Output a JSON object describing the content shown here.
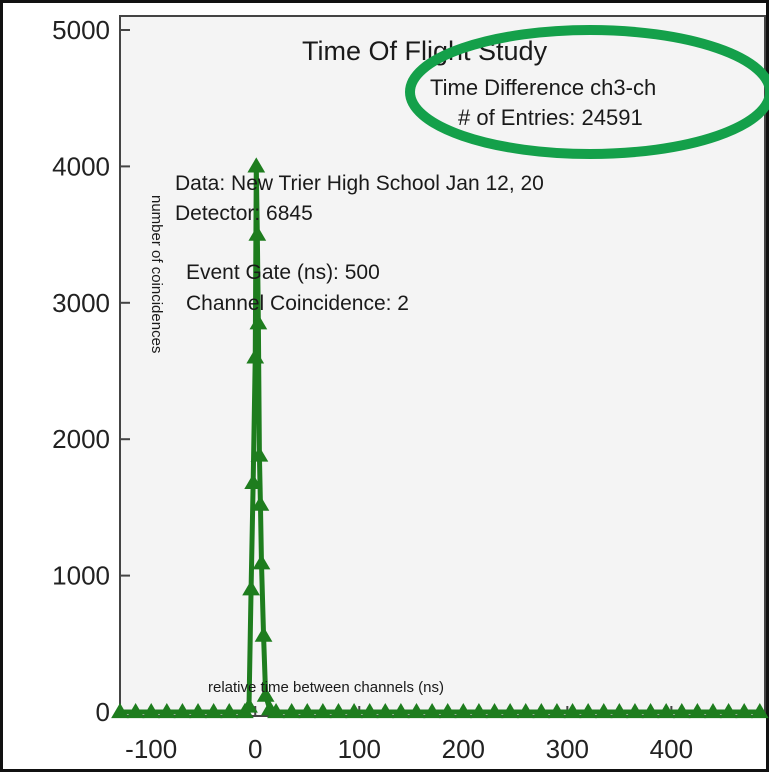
{
  "chart_data": {
    "type": "scatter",
    "title": "Time Of Flight Study",
    "subtitle": "Time Difference ch3-ch",
    "entries_label": "# of Entries: 24591",
    "xlabel": "relative time between channels (ns)",
    "ylabel": "number of coincidences",
    "info": {
      "data_line": "Data: New Trier High School Jan 12, 20",
      "detector_line": "Detector: 6845",
      "gate_line": "Event Gate (ns): 500",
      "coincidence_line": "Channel Coincidence: 2"
    },
    "xlim": [
      -130,
      490
    ],
    "ylim": [
      0,
      5000
    ],
    "x_ticks": [
      -100,
      0,
      100,
      200,
      300,
      400
    ],
    "y_ticks": [
      0,
      1000,
      2000,
      3000,
      4000,
      5000
    ],
    "series": [
      {
        "color": "#1e7d1e",
        "marker": "triangle",
        "x": [
          -130,
          -115,
          -100,
          -85,
          -70,
          -55,
          -40,
          -25,
          -10,
          -6,
          -4,
          -2,
          0,
          1,
          2,
          3,
          4,
          5,
          6,
          8,
          10,
          14,
          20,
          35,
          50,
          65,
          80,
          95,
          110,
          125,
          140,
          155,
          170,
          185,
          200,
          215,
          230,
          245,
          260,
          275,
          290,
          305,
          320,
          335,
          350,
          365,
          380,
          395,
          410,
          425,
          440,
          455,
          470,
          485
        ],
        "y": [
          0,
          0,
          0,
          0,
          0,
          0,
          0,
          0,
          0,
          40,
          900,
          1680,
          2600,
          4000,
          3500,
          2850,
          1880,
          1520,
          1090,
          560,
          120,
          20,
          0,
          0,
          0,
          0,
          0,
          0,
          0,
          0,
          0,
          0,
          0,
          0,
          0,
          0,
          0,
          0,
          0,
          0,
          0,
          0,
          0,
          0,
          0,
          0,
          0,
          0,
          0,
          0,
          0,
          0,
          0,
          0
        ]
      }
    ]
  },
  "colors": {
    "series": "#1e7d1e",
    "highlight_ellipse": "#14a04a",
    "background": "#ffffff",
    "border": "#000000"
  }
}
